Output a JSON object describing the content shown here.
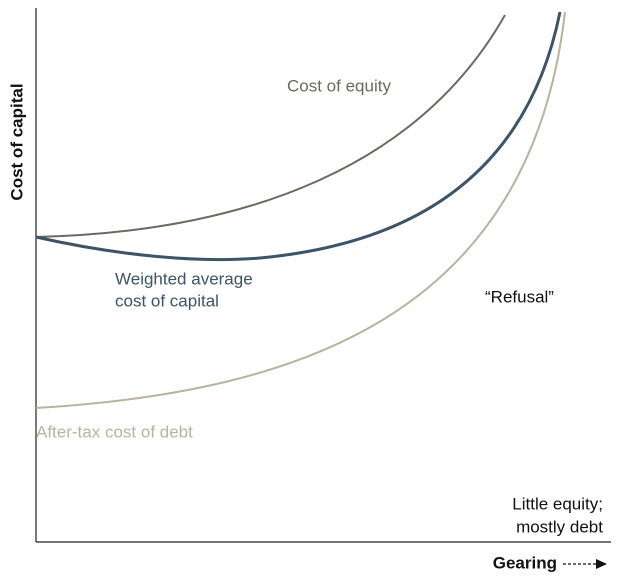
{
  "axes": {
    "y_label": "Cost of capital",
    "x_label": "Gearing"
  },
  "curves": {
    "equity": "Cost of equity",
    "wacc": [
      "Weighted average",
      "cost of capital"
    ],
    "debt": "After-tax cost of debt"
  },
  "annotations": {
    "refusal": "“Refusal”",
    "extreme": [
      "Little equity;",
      "mostly debt"
    ]
  }
}
